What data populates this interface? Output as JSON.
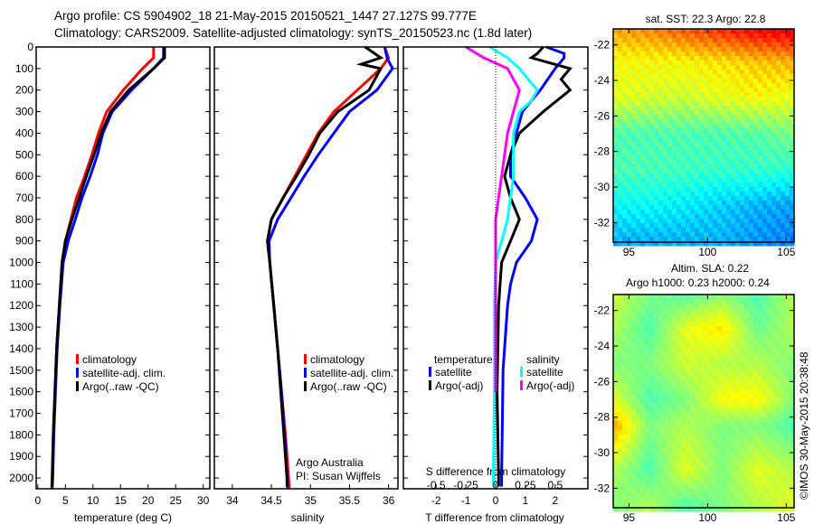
{
  "header": {
    "line1": "Argo profile: CS 5904902_18 21-May-2015 20150521_1447 27.127S 99.777E",
    "line2": "Climatology: CARS2009. Satellite-adjusted climatology: synTS_20150523.nc (1.8d later)"
  },
  "side_text": "©IMOS 30-May-2015 20:38:48",
  "chart_data": [
    {
      "type": "line",
      "id": "temperature",
      "xlabel": "temperature (deg C)",
      "ylabel": "depth",
      "xlim": [
        -0.3,
        31.2
      ],
      "ylim": [
        2050,
        0
      ],
      "xticks": [
        0,
        5,
        10,
        15,
        20,
        25,
        30
      ],
      "yticks": [
        0,
        100,
        200,
        300,
        400,
        500,
        600,
        700,
        800,
        900,
        1000,
        1100,
        1200,
        1300,
        1400,
        1500,
        1600,
        1700,
        1800,
        1900,
        2000
      ],
      "legend": [
        "climatology",
        "satellite-adj. clim.",
        "Argo(..raw -QC)"
      ],
      "series": [
        {
          "name": "climatology",
          "color": "#ff0000",
          "depth": [
            0,
            50,
            100,
            200,
            300,
            400,
            500,
            600,
            700,
            800,
            900,
            1000,
            1200,
            1400,
            1600,
            1800,
            2000,
            2050
          ],
          "values": [
            21,
            21,
            19,
            15.5,
            12.5,
            11,
            9.8,
            8.5,
            7,
            6,
            5,
            4.4,
            3.9,
            3.4,
            3.1,
            2.8,
            2.6,
            2.5
          ]
        },
        {
          "name": "satellite-adj. clim.",
          "color": "#0000ff",
          "depth": [
            0,
            50,
            100,
            200,
            300,
            400,
            500,
            600,
            700,
            800,
            900,
            1000,
            1200,
            1400,
            1600,
            1800,
            2000,
            2050
          ],
          "values": [
            22.8,
            22.8,
            21,
            17,
            13.5,
            11.8,
            10.8,
            9.5,
            8,
            6.8,
            5.5,
            4.6,
            4,
            3.5,
            3.2,
            2.9,
            2.7,
            2.6
          ]
        },
        {
          "name": "Argo(..raw -QC)",
          "color": "#000000",
          "depth": [
            0,
            50,
            100,
            200,
            300,
            400,
            500,
            600,
            700,
            800,
            900,
            1000,
            1200,
            1400,
            1600,
            1800,
            2000,
            2040
          ],
          "values": [
            23,
            23,
            21,
            16.5,
            13.2,
            11.5,
            10.2,
            8.8,
            7.5,
            6.2,
            5,
            4.4,
            3.9,
            3.4,
            3.1,
            2.8,
            2.6,
            2.6
          ]
        }
      ]
    },
    {
      "type": "line",
      "id": "salinity",
      "xlabel": "salinity",
      "xlim": [
        33.77,
        36.12
      ],
      "ylim": [
        2050,
        0
      ],
      "xticks": [
        34,
        34.5,
        35,
        35.5,
        36
      ],
      "legend": [
        "climatology",
        "satellite-adj. clim.",
        "Argo(..raw -QC)"
      ],
      "annotations": [
        "Argo Australia",
        "PI: Susan Wijffels"
      ],
      "series": [
        {
          "name": "climatology",
          "color": "#ff0000",
          "depth": [
            0,
            50,
            100,
            200,
            300,
            400,
            500,
            600,
            700,
            800,
            900,
            1000,
            1200,
            1400,
            1600,
            1800,
            2000,
            2050
          ],
          "values": [
            35.95,
            36,
            35.9,
            35.6,
            35.3,
            35.1,
            34.95,
            34.8,
            34.65,
            34.5,
            34.45,
            34.48,
            34.53,
            34.58,
            34.63,
            34.68,
            34.72,
            34.73
          ]
        },
        {
          "name": "satellite-adj. clim.",
          "color": "#0000ff",
          "depth": [
            0,
            50,
            100,
            200,
            300,
            400,
            500,
            600,
            700,
            800,
            900,
            1000,
            1200,
            1400,
            1600,
            1800,
            2000,
            2050
          ],
          "values": [
            35.95,
            35.98,
            36.05,
            35.85,
            35.5,
            35.3,
            35.1,
            34.92,
            34.75,
            34.58,
            34.47,
            34.48,
            34.53,
            34.58,
            34.63,
            34.67,
            34.7,
            34.71
          ]
        },
        {
          "name": "Argo(..raw -QC)",
          "color": "#000000",
          "depth": [
            0,
            50,
            80,
            100,
            200,
            300,
            400,
            500,
            600,
            700,
            800,
            900,
            1000,
            1200,
            1400,
            1600,
            1800,
            2000,
            2040
          ],
          "values": [
            35.7,
            35.9,
            35.65,
            35.9,
            35.75,
            35.35,
            35.12,
            34.98,
            34.82,
            34.65,
            34.5,
            34.45,
            34.48,
            34.53,
            34.58,
            34.62,
            34.66,
            34.7,
            34.7
          ]
        }
      ]
    },
    {
      "type": "line",
      "id": "differences",
      "xlabel": "T difference from climatology",
      "xlabel2": "S difference from climatology",
      "xlim": [
        -3.1,
        3.1
      ],
      "ylim": [
        2050,
        0
      ],
      "xticks": [
        -2,
        -1,
        0,
        1,
        2
      ],
      "xticks2": [
        -0.5,
        -0.25,
        0,
        0.25,
        0.5
      ],
      "xticks2_labels": [
        "-0.5",
        "-0.25",
        "0",
        "0.25",
        "0.5"
      ],
      "s_scale": 4,
      "legend_titles": [
        "temperature",
        "salinity"
      ],
      "legend": [
        "satellite",
        "Argo(-adj)",
        "satellite",
        "Argo(-adj)"
      ],
      "series": [
        {
          "name": "T satellite",
          "color": "#0000ff",
          "units": "T",
          "depth": [
            0,
            30,
            50,
            100,
            200,
            300,
            400,
            500,
            600,
            700,
            800,
            900,
            1000,
            1100,
            1200,
            1500,
            2000,
            2040
          ],
          "values": [
            1.7,
            2.3,
            2.3,
            2.0,
            1.5,
            0.9,
            0.7,
            0.5,
            0.5,
            1.0,
            1.4,
            1.2,
            0.7,
            0.5,
            0.4,
            0.25,
            0.2,
            0.2
          ]
        },
        {
          "name": "T Argo(-adj)",
          "color": "#000000",
          "units": "T",
          "depth": [
            0,
            30,
            50,
            100,
            150,
            200,
            300,
            400,
            500,
            600,
            700,
            800,
            900,
            1000,
            1200,
            1600,
            2000,
            2040
          ],
          "values": [
            1.6,
            1.4,
            1.2,
            2.5,
            2.2,
            2.5,
            1.6,
            0.8,
            0.5,
            0.3,
            0.5,
            0.8,
            0.5,
            0.2,
            0.1,
            0.05,
            0.1,
            0.1
          ]
        },
        {
          "name": "S satellite",
          "color": "#00ffff",
          "units": "S",
          "depth": [
            0,
            50,
            100,
            200,
            250,
            300,
            400,
            600,
            800,
            900,
            1000,
            1200,
            1600,
            2000,
            2040
          ],
          "values": [
            -0.05,
            0.1,
            0.2,
            0.35,
            0.3,
            0.2,
            0.15,
            0.15,
            0.1,
            0.05,
            0,
            -0.01,
            -0.01,
            -0.02,
            -0.02
          ]
        },
        {
          "name": "S Argo(-adj)",
          "color": "#ff00ff",
          "units": "S",
          "depth": [
            0,
            50,
            100,
            200,
            300,
            400,
            600,
            800,
            1000,
            1600
          ],
          "values": [
            -0.25,
            -0.1,
            0.1,
            0.2,
            0.15,
            0.1,
            0.05,
            0.0,
            0.0,
            0.0
          ]
        }
      ]
    },
    {
      "type": "heatmap",
      "id": "sst-map",
      "title": "sat. SST: 22.3  Argo: 22.8",
      "lon_range": [
        94,
        105.5
      ],
      "lat_range": [
        -33.1,
        -21.1
      ],
      "xticks": [
        95,
        100,
        105
      ],
      "yticks": [
        -22,
        -24,
        -26,
        -28,
        -30,
        -32
      ],
      "grid_lat": [
        -21,
        -23,
        -25,
        -27,
        -29,
        -31,
        -33
      ],
      "grid_lon": [
        94,
        96.3,
        98.6,
        100.9,
        103.2,
        105.5
      ],
      "values": [
        [
          0.72,
          0.75,
          0.8,
          0.85,
          0.9,
          0.92
        ],
        [
          0.62,
          0.62,
          0.63,
          0.65,
          0.68,
          0.7
        ],
        [
          0.6,
          0.58,
          0.57,
          0.6,
          0.62,
          0.6
        ],
        [
          0.45,
          0.45,
          0.45,
          0.45,
          0.46,
          0.5
        ],
        [
          0.45,
          0.45,
          0.44,
          0.43,
          0.43,
          0.42
        ],
        [
          0.38,
          0.38,
          0.36,
          0.33,
          0.3,
          0.28
        ],
        [
          0.3,
          0.3,
          0.3,
          0.3,
          0.27,
          0.25
        ]
      ]
    },
    {
      "type": "heatmap",
      "id": "sla-map",
      "title": "Altim. SLA: 0.22",
      "subtitle": "Argo h1000: 0.23 h2000: 0.24",
      "lon_range": [
        94,
        105.5
      ],
      "lat_range": [
        -33.1,
        -21.1
      ],
      "xticks": [
        95,
        100,
        105
      ],
      "yticks": [
        -22,
        -24,
        -26,
        -28,
        -30,
        -32
      ],
      "grid_lat": [
        -21,
        -23,
        -25,
        -27,
        -28.5,
        -31,
        -33
      ],
      "grid_lon": [
        94,
        96.3,
        98.6,
        100.9,
        103.2,
        105.5
      ],
      "values": [
        [
          0.58,
          0.5,
          0.45,
          0.5,
          0.45,
          0.55
        ],
        [
          0.55,
          0.45,
          0.6,
          0.65,
          0.48,
          0.55
        ],
        [
          0.5,
          0.5,
          0.58,
          0.55,
          0.55,
          0.5
        ],
        [
          0.6,
          0.45,
          0.5,
          0.62,
          0.63,
          0.5
        ],
        [
          0.72,
          0.5,
          0.55,
          0.5,
          0.5,
          0.45
        ],
        [
          0.55,
          0.45,
          0.6,
          0.5,
          0.6,
          0.55
        ],
        [
          0.5,
          0.55,
          0.45,
          0.5,
          0.55,
          0.6
        ]
      ]
    }
  ]
}
